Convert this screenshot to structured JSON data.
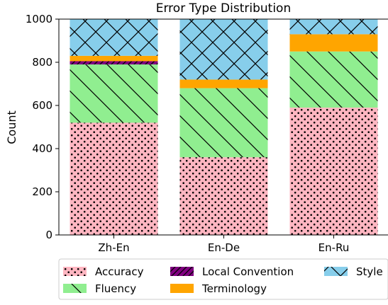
{
  "chart_data": {
    "type": "bar",
    "stacked": true,
    "title": "Error Type Distribution",
    "xlabel": "",
    "ylabel": "Count",
    "ylim": [
      0,
      1000
    ],
    "yticks": [
      0,
      200,
      400,
      600,
      800,
      1000
    ],
    "categories": [
      "Zh-En",
      "En-De",
      "En-Ru"
    ],
    "grid": false,
    "legend_position": "bottom",
    "series": [
      {
        "name": "Accuracy",
        "values": [
          520,
          360,
          590
        ],
        "color": "#ffb6c1",
        "hatch": "dots"
      },
      {
        "name": "Fluency",
        "values": [
          270,
          320,
          260
        ],
        "color": "#90ee90",
        "hatch": "backslash"
      },
      {
        "name": "Local Convention",
        "values": [
          15,
          0,
          0
        ],
        "color": "#800080",
        "hatch": "slash"
      },
      {
        "name": "Terminology",
        "values": [
          25,
          40,
          80
        ],
        "color": "#ffa500",
        "hatch": "none"
      },
      {
        "name": "Style",
        "values": [
          170,
          280,
          70
        ],
        "color": "#87ceeb",
        "hatch": "cross"
      }
    ]
  }
}
